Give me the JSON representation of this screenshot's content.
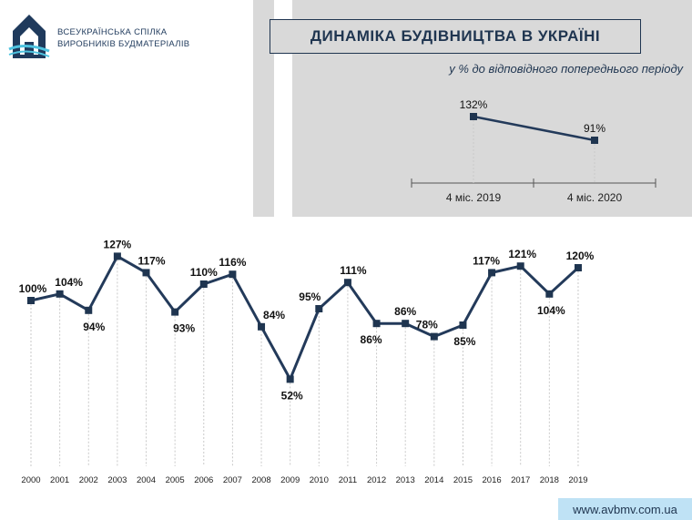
{
  "header": {
    "org_line1": "ВСЕУКРАЇНСЬКА СПІЛКА",
    "org_line2": "ВИРОБНИКІВ БУДМАТЕРІАЛІВ",
    "logo_icon": "house-logo-icon",
    "title": "ДИНАМІКА БУДІВНИЦТВА В УКРАЇНІ",
    "subtitle": "у % до відповідного попереднього періоду"
  },
  "footer": {
    "website": "www.avbmv.com.ua"
  },
  "colors": {
    "line": "#233a5a",
    "marker": "#1f3550",
    "panel": "#d9d9d9",
    "grid": "#c9c9c9",
    "website_bg": "#bfe2f5"
  },
  "chart_data": [
    {
      "type": "line",
      "categories": [
        "4 міс. 2019",
        "4 міс. 2020"
      ],
      "values": [
        132,
        91
      ],
      "labels": [
        "132%",
        "91%"
      ],
      "unit": "%"
    },
    {
      "type": "line",
      "categories": [
        "2000",
        "2001",
        "2002",
        "2003",
        "2004",
        "2005",
        "2006",
        "2007",
        "2008",
        "2009",
        "2010",
        "2011",
        "2012",
        "2013",
        "2014",
        "2015",
        "2016",
        "2017",
        "2018",
        "2019"
      ],
      "values": [
        100,
        104,
        94,
        127,
        117,
        93,
        110,
        116,
        84,
        52,
        95,
        111,
        86,
        86,
        78,
        85,
        117,
        121,
        104,
        120
      ],
      "labels": [
        "100%",
        "104%",
        "94%",
        "127%",
        "117%",
        "93%",
        "110%",
        "116%",
        "84%",
        "52%",
        "95%",
        "111%",
        "86%",
        "86%",
        "78%",
        "85%",
        "117%",
        "121%",
        "104%",
        "120%"
      ],
      "unit": "%"
    }
  ]
}
